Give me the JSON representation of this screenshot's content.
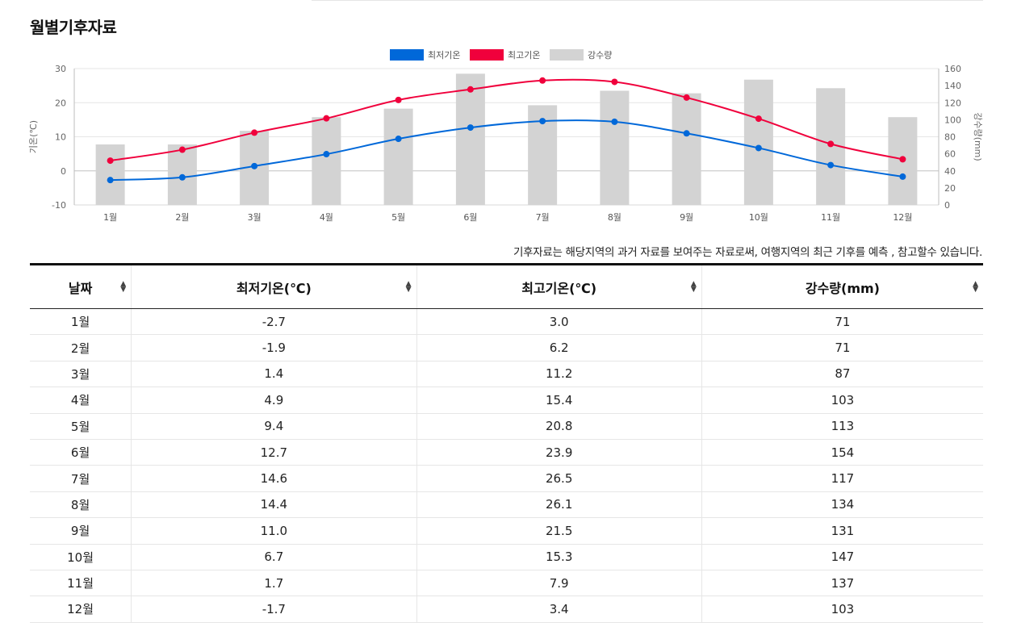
{
  "page": {
    "title": "월별기후자료",
    "note": "기후자료는 해당지역의 과거 자료를 보여주는 자료로써, 여행지역의 최근 기후를 예측 , 참고할수 있습니다."
  },
  "colors": {
    "low": "#0068d9",
    "high": "#f0003c",
    "rain": "#d3d3d3",
    "grid": "#e6e6e6",
    "axis": "#bdbdbd"
  },
  "chart_data": {
    "type": "line+bar",
    "categories": [
      "1월",
      "2월",
      "3월",
      "4월",
      "5월",
      "6월",
      "7월",
      "8월",
      "9월",
      "10월",
      "11월",
      "12월"
    ],
    "series": [
      {
        "name": "최저기온",
        "kind": "line",
        "axis": "left",
        "values": [
          -2.7,
          -1.9,
          1.4,
          4.9,
          9.4,
          12.7,
          14.6,
          14.4,
          11.0,
          6.7,
          1.7,
          -1.7
        ]
      },
      {
        "name": "최고기온",
        "kind": "line",
        "axis": "left",
        "values": [
          3.0,
          6.2,
          11.2,
          15.4,
          20.8,
          23.9,
          26.5,
          26.1,
          21.5,
          15.3,
          7.9,
          3.4
        ]
      },
      {
        "name": "강수량",
        "kind": "bar",
        "axis": "right",
        "values": [
          71,
          71,
          87,
          103,
          113,
          154,
          117,
          134,
          131,
          147,
          137,
          103
        ]
      }
    ],
    "ylabel": "기온(℃)",
    "y2label": "강수량(mm)",
    "ylim": [
      -10,
      30
    ],
    "yticks": [
      "30",
      "20",
      "10",
      "0",
      "-10"
    ],
    "y2lim": [
      0,
      160
    ],
    "y2ticks": [
      "160",
      "140",
      "120",
      "100",
      "80",
      "60",
      "40",
      "20",
      "0"
    ],
    "legend": "top-center",
    "grid": true
  },
  "table": {
    "headers": [
      "날짜",
      "최저기온(℃)",
      "최고기온(℃)",
      "강수량(mm)"
    ],
    "sort_icon": "sort-arrows-icon",
    "rows": [
      [
        "1월",
        "-2.7",
        "3.0",
        "71"
      ],
      [
        "2월",
        "-1.9",
        "6.2",
        "71"
      ],
      [
        "3월",
        "1.4",
        "11.2",
        "87"
      ],
      [
        "4월",
        "4.9",
        "15.4",
        "103"
      ],
      [
        "5월",
        "9.4",
        "20.8",
        "113"
      ],
      [
        "6월",
        "12.7",
        "23.9",
        "154"
      ],
      [
        "7월",
        "14.6",
        "26.5",
        "117"
      ],
      [
        "8월",
        "14.4",
        "26.1",
        "134"
      ],
      [
        "9월",
        "11.0",
        "21.5",
        "131"
      ],
      [
        "10월",
        "6.7",
        "15.3",
        "147"
      ],
      [
        "11월",
        "1.7",
        "7.9",
        "137"
      ],
      [
        "12월",
        "-1.7",
        "3.4",
        "103"
      ]
    ]
  }
}
